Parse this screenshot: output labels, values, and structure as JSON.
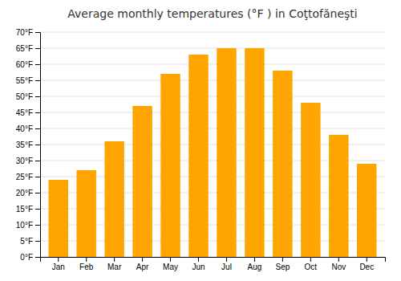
{
  "chart_data": {
    "type": "bar",
    "title": "Average monthly temperatures (°F ) in Coţtofăneşti",
    "categories": [
      "Jan",
      "Feb",
      "Mar",
      "Apr",
      "May",
      "Jun",
      "Jul",
      "Aug",
      "Sep",
      "Oct",
      "Nov",
      "Dec"
    ],
    "values": [
      24,
      27,
      36,
      47,
      57,
      63,
      65,
      65,
      58,
      48,
      38,
      29
    ],
    "color": "#FFA500",
    "ylim": [
      0,
      70
    ],
    "yticks": [
      {
        "value": 0,
        "label": "0°F"
      },
      {
        "value": 5,
        "label": "5°F"
      },
      {
        "value": 10,
        "label": "10°F"
      },
      {
        "value": 15,
        "label": "15°F"
      },
      {
        "value": 20,
        "label": "20°F"
      },
      {
        "value": 25,
        "label": "25°F"
      },
      {
        "value": 30,
        "label": "30°F"
      },
      {
        "value": 35,
        "label": "35°F"
      },
      {
        "value": 40,
        "label": "40°F"
      },
      {
        "value": 45,
        "label": "45°F"
      },
      {
        "value": 50,
        "label": "50°F"
      },
      {
        "value": 55,
        "label": "55°F"
      },
      {
        "value": 60,
        "label": "60°F"
      },
      {
        "value": 65,
        "label": "65°F"
      },
      {
        "value": 70,
        "label": "70°F"
      }
    ],
    "grid": true
  }
}
